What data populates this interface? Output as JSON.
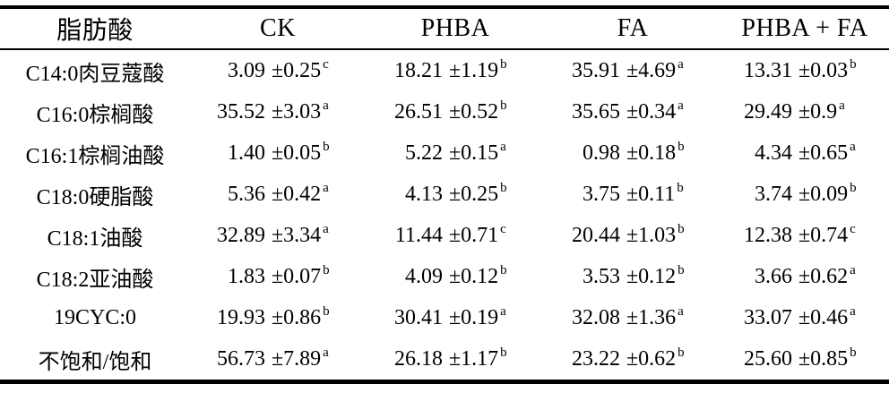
{
  "table": {
    "pm": "±",
    "headers": [
      "脂肪酸",
      "CK",
      "PHBA",
      "FA",
      "PHBA + FA"
    ],
    "rows": [
      {
        "name": "C14:0肉豆蔻酸",
        "values": [
          {
            "mean": "3.09",
            "sd": "0.25",
            "sig": "c"
          },
          {
            "mean": "18.21",
            "sd": "1.19",
            "sig": "b"
          },
          {
            "mean": "35.91",
            "sd": "4.69",
            "sig": "a"
          },
          {
            "mean": "13.31",
            "sd": "0.03",
            "sig": "b"
          }
        ]
      },
      {
        "name": "C16:0棕榈酸",
        "values": [
          {
            "mean": "35.52",
            "sd": "3.03",
            "sig": "a"
          },
          {
            "mean": "26.51",
            "sd": "0.52",
            "sig": "b"
          },
          {
            "mean": "35.65",
            "sd": "0.34",
            "sig": "a"
          },
          {
            "mean": "29.49",
            "sd": "0.9",
            "sig": "a"
          }
        ]
      },
      {
        "name": "C16:1棕榈油酸",
        "values": [
          {
            "mean": "1.40",
            "sd": "0.05",
            "sig": "b"
          },
          {
            "mean": "5.22",
            "sd": "0.15",
            "sig": "a"
          },
          {
            "mean": "0.98",
            "sd": "0.18",
            "sig": "b"
          },
          {
            "mean": "4.34",
            "sd": "0.65",
            "sig": "a"
          }
        ]
      },
      {
        "name": "C18:0硬脂酸",
        "values": [
          {
            "mean": "5.36",
            "sd": "0.42",
            "sig": "a"
          },
          {
            "mean": "4.13",
            "sd": "0.25",
            "sig": "b"
          },
          {
            "mean": "3.75",
            "sd": "0.11",
            "sig": "b"
          },
          {
            "mean": "3.74",
            "sd": "0.09",
            "sig": "b"
          }
        ]
      },
      {
        "name": "C18:1油酸",
        "values": [
          {
            "mean": "32.89",
            "sd": "3.34",
            "sig": "a"
          },
          {
            "mean": "11.44",
            "sd": "0.71",
            "sig": "c"
          },
          {
            "mean": "20.44",
            "sd": "1.03",
            "sig": "b"
          },
          {
            "mean": "12.38",
            "sd": "0.74",
            "sig": "c"
          }
        ]
      },
      {
        "name": "C18:2亚油酸",
        "values": [
          {
            "mean": "1.83",
            "sd": "0.07",
            "sig": "b"
          },
          {
            "mean": "4.09",
            "sd": "0.12",
            "sig": "b"
          },
          {
            "mean": "3.53",
            "sd": "0.12",
            "sig": "b"
          },
          {
            "mean": "3.66",
            "sd": "0.62",
            "sig": "a"
          }
        ]
      },
      {
        "name": "19CYC:0",
        "values": [
          {
            "mean": "19.93",
            "sd": "0.86",
            "sig": "b"
          },
          {
            "mean": "30.41",
            "sd": "0.19",
            "sig": "a"
          },
          {
            "mean": "32.08",
            "sd": "1.36",
            "sig": "a"
          },
          {
            "mean": "33.07",
            "sd": "0.46",
            "sig": "a"
          }
        ]
      },
      {
        "name": "不饱和/饱和",
        "values": [
          {
            "mean": "56.73",
            "sd": "7.89",
            "sig": "a"
          },
          {
            "mean": "26.18",
            "sd": "1.17",
            "sig": "b"
          },
          {
            "mean": "23.22",
            "sd": "0.62",
            "sig": "b"
          },
          {
            "mean": "25.60",
            "sd": "0.85",
            "sig": "b"
          }
        ]
      }
    ]
  },
  "colors": {
    "text": "#000000",
    "background": "#ffffff",
    "rule": "#000000"
  }
}
